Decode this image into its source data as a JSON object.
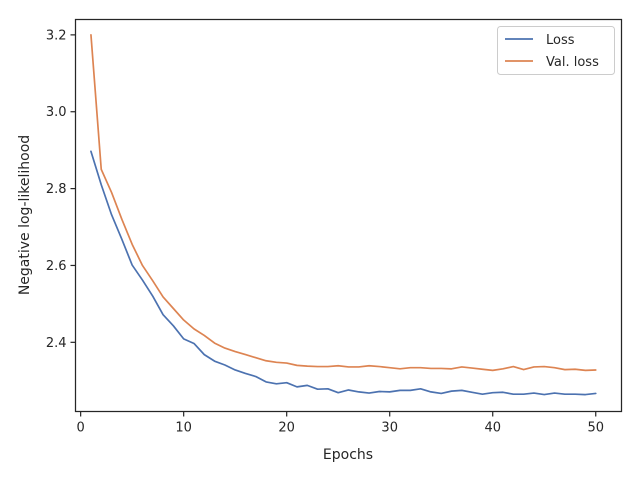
{
  "chart_data": {
    "type": "line",
    "title": "",
    "xlabel": "Epochs",
    "ylabel": "Negative log-likelihood",
    "xlim": [
      -0.5,
      52.5
    ],
    "ylim": [
      2.22,
      3.24
    ],
    "xticks": [
      0,
      10,
      20,
      30,
      40,
      50
    ],
    "xtick_labels": [
      "0",
      "10",
      "20",
      "30",
      "40",
      "50"
    ],
    "yticks": [
      2.4,
      2.6,
      2.8,
      3.0,
      3.2
    ],
    "ytick_labels": [
      "2.4",
      "2.6",
      "2.8",
      "3.0",
      "3.2"
    ],
    "grid": false,
    "legend_position": "top-right",
    "x": [
      1,
      2,
      3,
      4,
      5,
      6,
      7,
      8,
      9,
      10,
      11,
      12,
      13,
      14,
      15,
      16,
      17,
      18,
      19,
      20,
      21,
      22,
      23,
      24,
      25,
      26,
      27,
      28,
      29,
      30,
      31,
      32,
      33,
      34,
      35,
      36,
      37,
      38,
      39,
      40,
      41,
      42,
      43,
      44,
      45,
      46,
      47,
      48,
      49,
      50
    ],
    "series": [
      {
        "name": "Loss",
        "color": "#4c72b0",
        "values": [
          2.897,
          2.81,
          2.732,
          2.668,
          2.601,
          2.562,
          2.52,
          2.472,
          2.443,
          2.409,
          2.397,
          2.368,
          2.351,
          2.341,
          2.328,
          2.319,
          2.311,
          2.297,
          2.292,
          2.295,
          2.284,
          2.288,
          2.278,
          2.279,
          2.269,
          2.276,
          2.271,
          2.268,
          2.272,
          2.271,
          2.275,
          2.275,
          2.279,
          2.271,
          2.267,
          2.273,
          2.275,
          2.27,
          2.265,
          2.269,
          2.27,
          2.265,
          2.265,
          2.268,
          2.264,
          2.268,
          2.265,
          2.265,
          2.264,
          2.267
        ]
      },
      {
        "name": "Val. loss",
        "color": "#dd8452",
        "values": [
          3.2,
          2.85,
          2.79,
          2.72,
          2.655,
          2.6,
          2.56,
          2.518,
          2.488,
          2.458,
          2.435,
          2.418,
          2.398,
          2.385,
          2.376,
          2.368,
          2.36,
          2.352,
          2.348,
          2.346,
          2.34,
          2.338,
          2.337,
          2.337,
          2.339,
          2.336,
          2.336,
          2.339,
          2.337,
          2.334,
          2.331,
          2.334,
          2.334,
          2.332,
          2.332,
          2.331,
          2.336,
          2.333,
          2.33,
          2.327,
          2.331,
          2.337,
          2.329,
          2.336,
          2.337,
          2.334,
          2.329,
          2.33,
          2.327,
          2.328
        ]
      }
    ]
  }
}
